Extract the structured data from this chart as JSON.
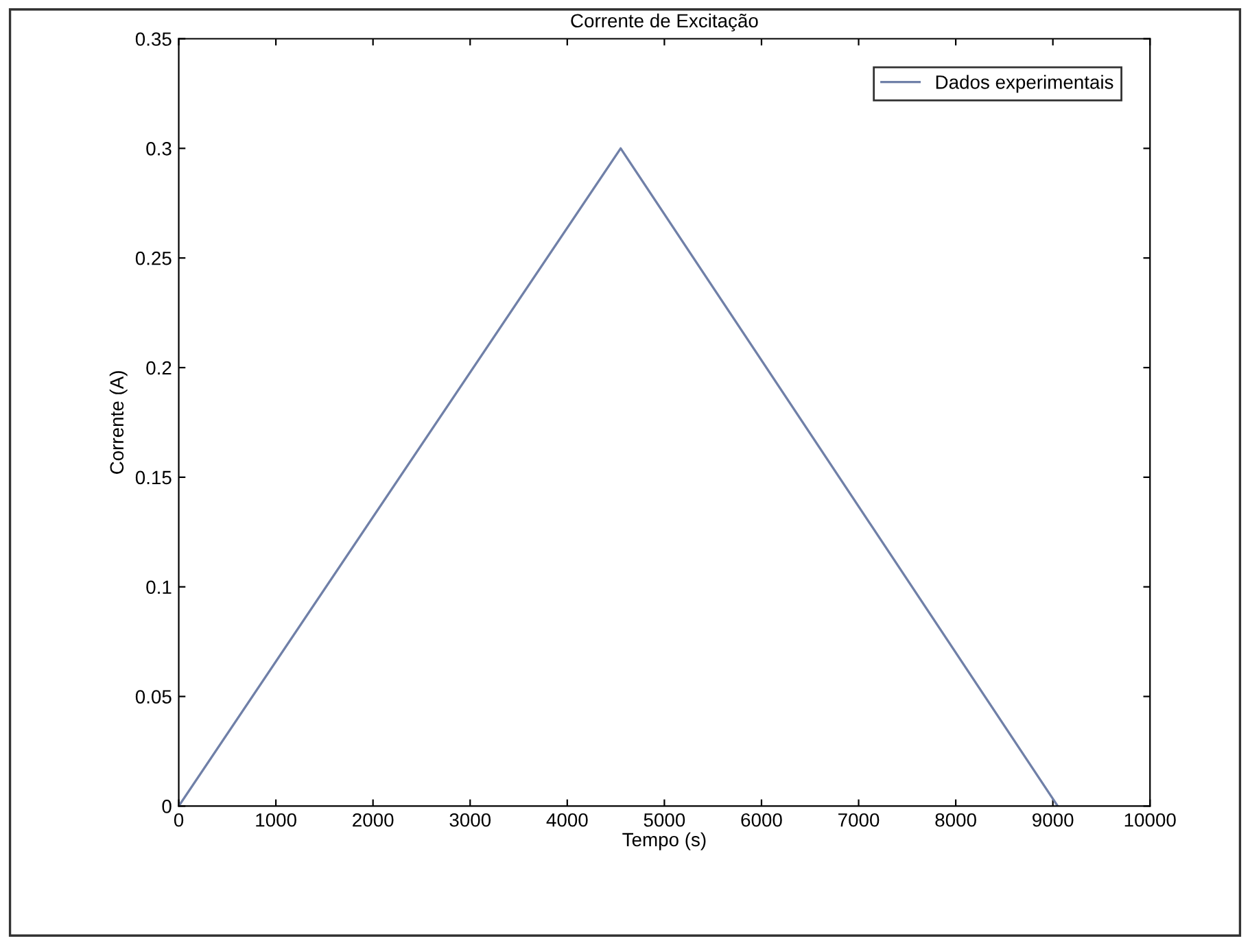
{
  "chart_data": {
    "type": "line",
    "title": "Corrente de Excitação",
    "xlabel": "Tempo (s)",
    "ylabel": "Corrente (A)",
    "x": [
      0,
      4550,
      9050
    ],
    "series": [
      {
        "name": "Dados experimentais",
        "color": "#7080a8",
        "values": [
          0,
          0.3,
          0
        ]
      }
    ],
    "xlim": [
      0,
      10000
    ],
    "xticks": [
      0,
      1000,
      2000,
      3000,
      4000,
      5000,
      6000,
      7000,
      8000,
      9000,
      10000
    ],
    "ylim": [
      0,
      0.35
    ],
    "yticks": [
      0,
      0.05,
      0.1,
      0.15,
      0.2,
      0.25,
      0.3,
      0.35
    ],
    "grid": false,
    "legend": "top right",
    "marker": "none",
    "line_style": "solid"
  }
}
